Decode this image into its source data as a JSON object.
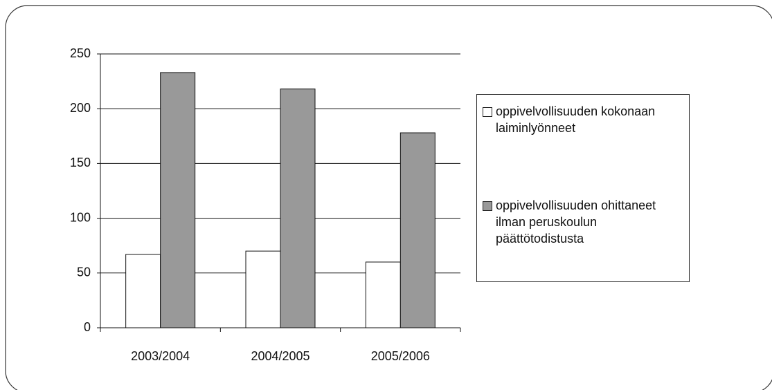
{
  "chart_data": {
    "type": "bar",
    "categories": [
      "2003/2004",
      "2004/2005",
      "2005/2006"
    ],
    "series": [
      {
        "name": "oppivelvollisuuden kokonaan laiminlyönneet",
        "color": "#ffffff",
        "values": [
          67,
          70,
          60
        ]
      },
      {
        "name": "oppivelvollisuuden ohittaneet ilman peruskoulun päättötodistusta",
        "color": "#999999",
        "values": [
          233,
          218,
          178
        ]
      }
    ],
    "ylim": [
      0,
      250
    ],
    "yticks": [
      0,
      50,
      100,
      150,
      200,
      250
    ],
    "grid": true,
    "legend": "right"
  }
}
